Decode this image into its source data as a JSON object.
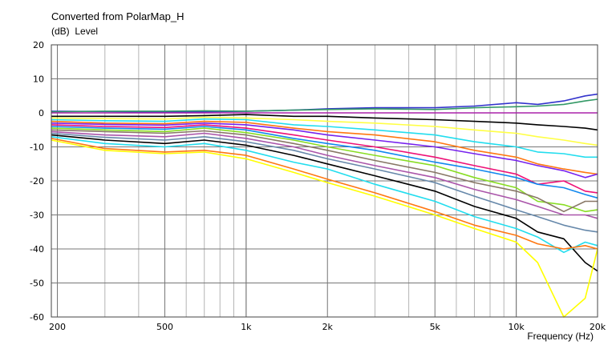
{
  "chart_data": {
    "type": "line",
    "title": "Converted from PolarMap_H",
    "ylabel_unit": "(dB)",
    "ylabel": "Level",
    "xlabel": "Frequency (Hz)",
    "x_scale": "log",
    "xlim": [
      190,
      20000
    ],
    "ylim": [
      -60,
      20
    ],
    "grid": true,
    "y_ticks": [
      "20",
      "10",
      "0",
      "-10",
      "-20",
      "-30",
      "-40",
      "-50",
      "-60"
    ],
    "x_ticks": [
      {
        "value": 200,
        "label": "200"
      },
      {
        "value": 500,
        "label": "500"
      },
      {
        "value": 1000,
        "label": "1k"
      },
      {
        "value": 2000,
        "label": "2k"
      },
      {
        "value": 5000,
        "label": "5k"
      },
      {
        "value": 10000,
        "label": "10k"
      },
      {
        "value": 20000,
        "label": "20k"
      }
    ],
    "x": [
      190,
      300,
      500,
      700,
      1000,
      1500,
      2000,
      3000,
      5000,
      7000,
      10000,
      12000,
      15000,
      18000,
      20000
    ],
    "series": [
      {
        "color": "#3333cc",
        "values": [
          0.5,
          0.4,
          0.2,
          0.3,
          0.5,
          0.8,
          1.2,
          1.5,
          1.5,
          2.0,
          3.0,
          2.5,
          3.5,
          5.0,
          5.5
        ]
      },
      {
        "color": "#339966",
        "values": [
          0.3,
          0.5,
          0.5,
          0.6,
          0.5,
          0.8,
          1.0,
          1.2,
          1.0,
          1.5,
          1.8,
          2.0,
          2.5,
          3.5,
          4.0
        ]
      },
      {
        "color": "#aa22aa",
        "values": [
          0.0,
          0.0,
          0.0,
          0.0,
          0.0,
          0.0,
          0.0,
          0.0,
          0.0,
          0.0,
          0.0,
          0.0,
          0.0,
          0.0,
          0.0
        ]
      },
      {
        "color": "#000000",
        "values": [
          -1.0,
          -1.0,
          -1.0,
          -0.8,
          -0.5,
          -1.0,
          -1.0,
          -1.5,
          -2.0,
          -2.5,
          -3.0,
          -3.5,
          -4.0,
          -4.5,
          -5.0
        ]
      },
      {
        "color": "#ffff44",
        "values": [
          -1.5,
          -1.7,
          -1.8,
          -1.3,
          -1.5,
          -2.0,
          -2.5,
          -3.0,
          -4.0,
          -5.0,
          -6.0,
          -7.0,
          -8.0,
          -9.0,
          -9.5
        ]
      },
      {
        "color": "#22ddee",
        "values": [
          -2.0,
          -2.3,
          -2.5,
          -1.8,
          -2.0,
          -3.5,
          -4.0,
          -5.0,
          -6.5,
          -8.5,
          -10.0,
          -11.5,
          -12.0,
          -13.0,
          -13.0
        ]
      },
      {
        "color": "#ff7711",
        "values": [
          -2.5,
          -3.0,
          -3.2,
          -2.5,
          -2.8,
          -4.5,
          -5.5,
          -6.5,
          -8.5,
          -11.0,
          -13.0,
          -15.0,
          -16.5,
          -17.5,
          -18.0
        ]
      },
      {
        "color": "#7722ee",
        "values": [
          -3.0,
          -3.4,
          -3.6,
          -3.0,
          -3.5,
          -5.0,
          -6.5,
          -8.0,
          -10.0,
          -12.0,
          -14.0,
          -15.5,
          -17.0,
          -19.0,
          -18.0
        ]
      },
      {
        "color": "#ee1177",
        "values": [
          -3.5,
          -4.0,
          -4.3,
          -3.5,
          -4.5,
          -6.5,
          -8.0,
          -10.0,
          -13.0,
          -15.5,
          -18.0,
          -21.0,
          -20.0,
          -23.0,
          -23.5
        ]
      },
      {
        "color": "#1188ee",
        "values": [
          -4.0,
          -4.5,
          -4.8,
          -4.0,
          -5.0,
          -7.5,
          -9.0,
          -11.0,
          -14.5,
          -16.5,
          -19.0,
          -21.0,
          -22.0,
          -24.0,
          -25.0
        ]
      },
      {
        "color": "#88dd22",
        "values": [
          -4.5,
          -5.0,
          -5.5,
          -4.5,
          -5.8,
          -8.0,
          -10.0,
          -12.5,
          -15.5,
          -19.0,
          -22.0,
          -26.0,
          -27.0,
          -29.0,
          -28.5
        ]
      },
      {
        "color": "#887766",
        "values": [
          -5.0,
          -5.5,
          -6.0,
          -5.3,
          -6.5,
          -9.0,
          -11.0,
          -14.0,
          -17.5,
          -20.5,
          -23.0,
          -25.0,
          -29.0,
          -26.0,
          -26.0
        ]
      },
      {
        "color": "#aa55aa",
        "values": [
          -5.5,
          -6.5,
          -7.0,
          -6.0,
          -7.5,
          -10.0,
          -12.5,
          -15.5,
          -19.0,
          -22.5,
          -25.5,
          -27.5,
          -30.0,
          -30.0,
          -31.0
        ]
      },
      {
        "color": "#6688aa",
        "values": [
          -6.0,
          -7.2,
          -8.0,
          -7.0,
          -8.5,
          -11.0,
          -13.5,
          -16.5,
          -20.5,
          -24.5,
          -28.5,
          -30.5,
          -33.0,
          -34.5,
          -35.0
        ]
      },
      {
        "color": "#000000",
        "values": [
          -6.5,
          -8.0,
          -9.0,
          -8.0,
          -9.5,
          -12.5,
          -15.0,
          -18.5,
          -23.0,
          -27.5,
          -31.0,
          -35.0,
          -37.0,
          -44.0,
          -46.5
        ]
      },
      {
        "color": "#22ddee",
        "values": [
          -7.0,
          -9.0,
          -10.0,
          -9.0,
          -11.0,
          -14.5,
          -16.5,
          -21.0,
          -26.0,
          -30.5,
          -34.0,
          -36.5,
          -41.0,
          -38.0,
          -39.0
        ]
      },
      {
        "color": "#ff7711",
        "values": [
          -7.5,
          -10.5,
          -11.5,
          -11.0,
          -12.5,
          -16.5,
          -19.5,
          -23.5,
          -29.0,
          -33.0,
          -36.0,
          -38.5,
          -40.0,
          -39.0,
          -40.0
        ]
      },
      {
        "color": "#ffff00",
        "values": [
          -8.0,
          -11.0,
          -12.0,
          -11.5,
          -13.5,
          -17.5,
          -20.5,
          -24.5,
          -30.0,
          -34.0,
          -38.0,
          -44.0,
          -60.0,
          -54.5,
          -40.0
        ]
      }
    ]
  }
}
